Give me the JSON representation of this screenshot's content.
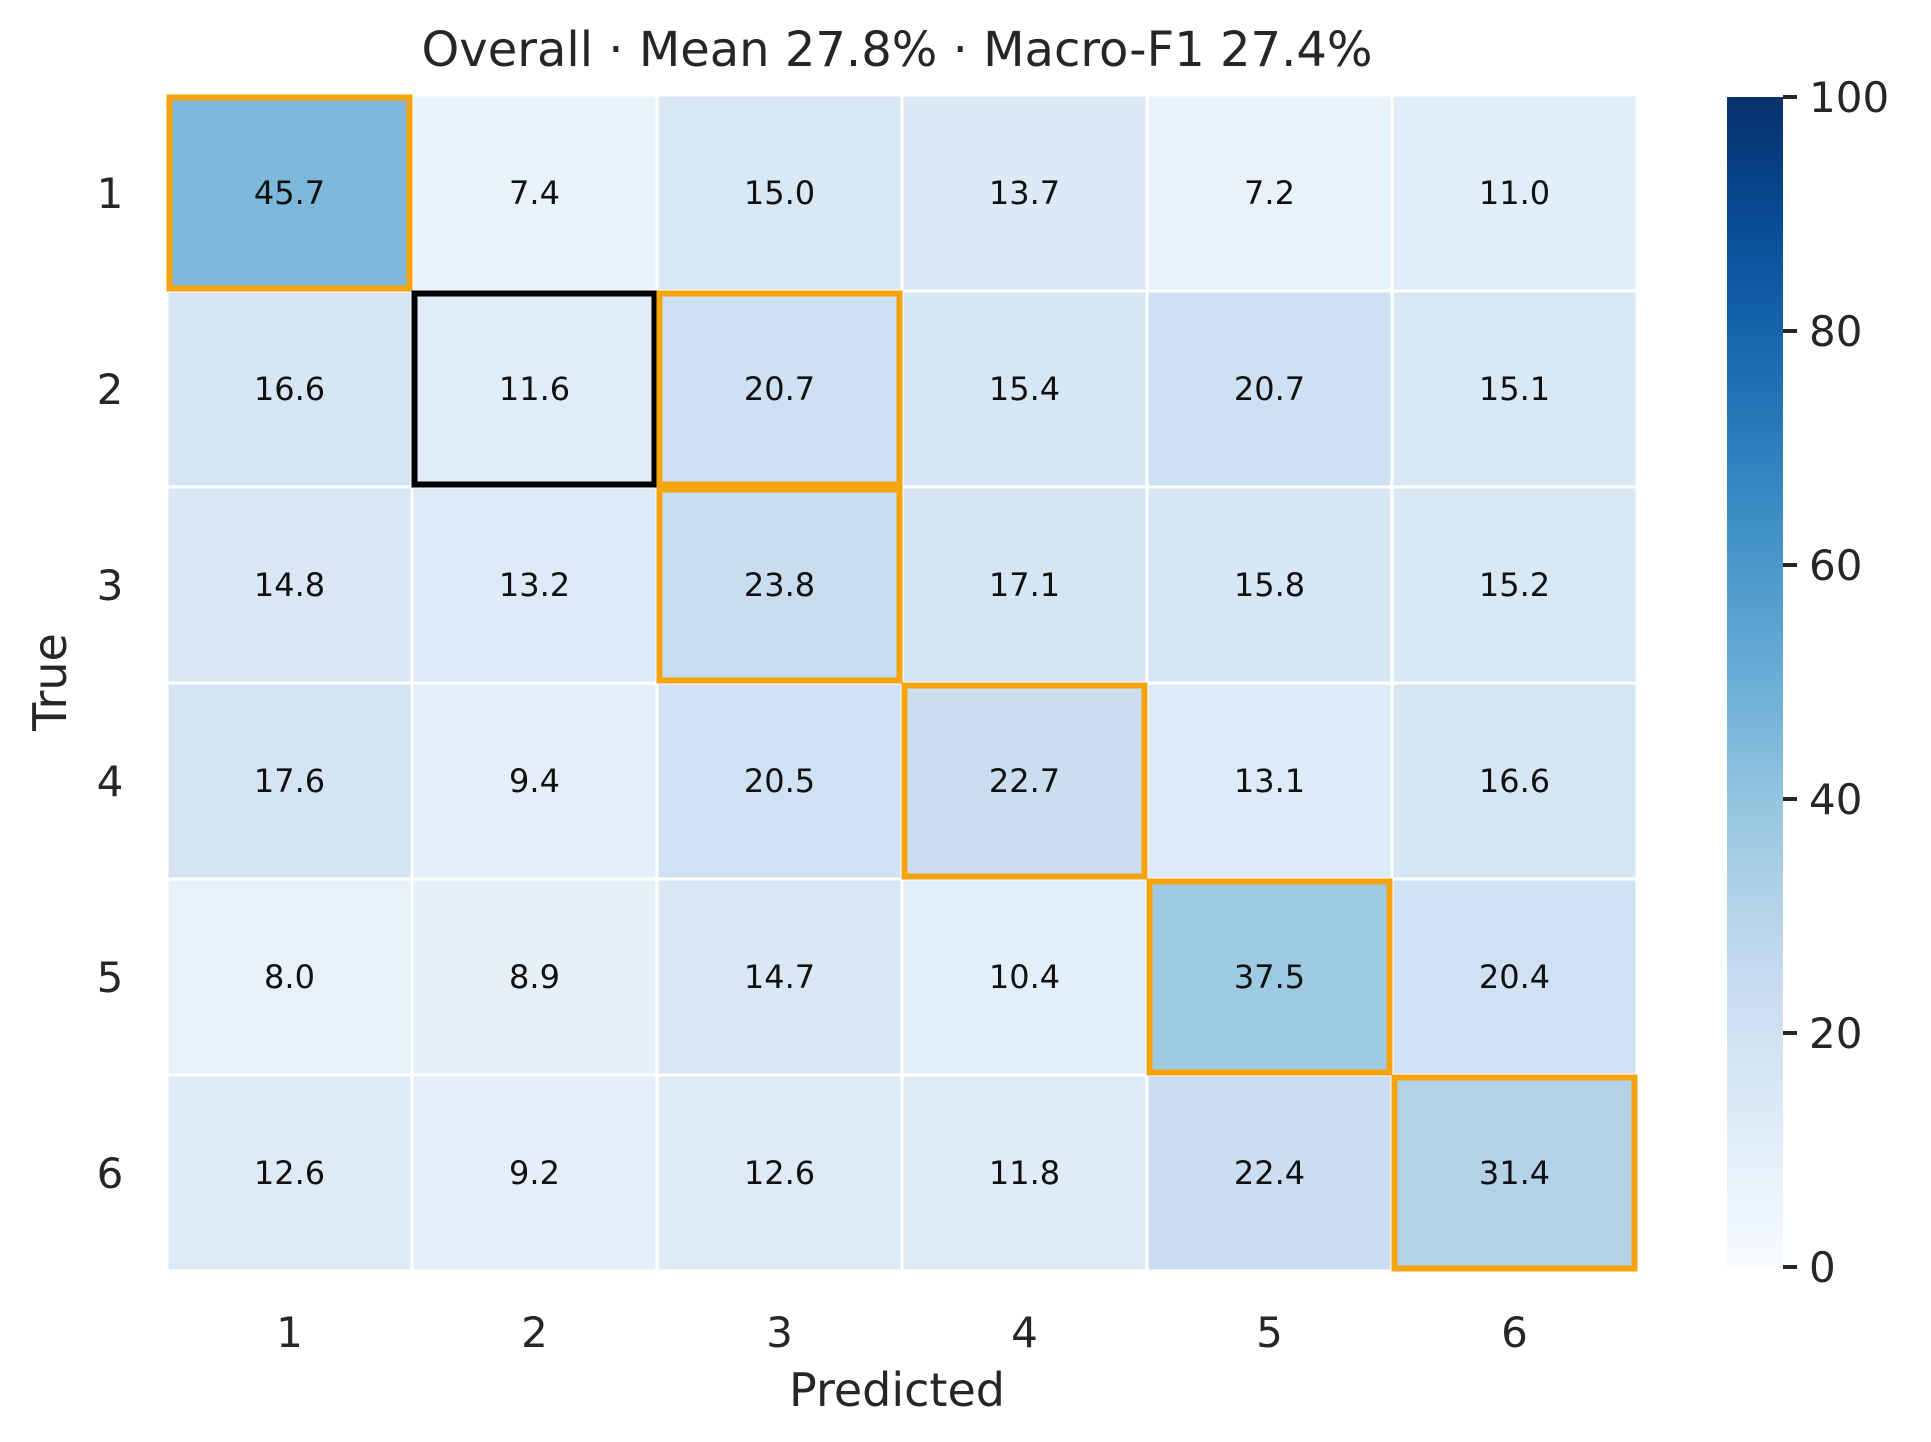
{
  "chart_data": {
    "type": "heatmap",
    "title": "Overall · Mean 27.8% · Macro-F1 27.4%",
    "xlabel": "Predicted",
    "ylabel": "True",
    "x_categories": [
      "1",
      "2",
      "3",
      "4",
      "5",
      "6"
    ],
    "y_categories": [
      "1",
      "2",
      "3",
      "4",
      "5",
      "6"
    ],
    "values": [
      [
        45.7,
        7.4,
        15.0,
        13.7,
        7.2,
        11.0
      ],
      [
        16.6,
        11.6,
        20.7,
        15.4,
        20.7,
        15.1
      ],
      [
        14.8,
        13.2,
        23.8,
        17.1,
        15.8,
        15.2
      ],
      [
        17.6,
        9.4,
        20.5,
        22.7,
        13.1,
        16.6
      ],
      [
        8.0,
        8.9,
        14.7,
        10.4,
        37.5,
        20.4
      ],
      [
        12.6,
        9.2,
        12.6,
        11.8,
        22.4,
        31.4
      ]
    ],
    "value_labels": [
      [
        "45.7",
        "7.4",
        "15.0",
        "13.7",
        "7.2",
        "11.0"
      ],
      [
        "16.6",
        "11.6",
        "20.7",
        "15.4",
        "20.7",
        "15.1"
      ],
      [
        "14.8",
        "13.2",
        "23.8",
        "17.1",
        "15.8",
        "15.2"
      ],
      [
        "17.6",
        "9.4",
        "20.5",
        "22.7",
        "13.1",
        "16.6"
      ],
      [
        "8.0",
        "8.9",
        "14.7",
        "10.4",
        "37.5",
        "20.4"
      ],
      [
        "12.6",
        "9.2",
        "12.6",
        "11.8",
        "22.4",
        "31.4"
      ]
    ],
    "colormap": "Blues",
    "vmin": 0,
    "vmax": 100,
    "colorbar_ticks": [
      "0",
      "20",
      "40",
      "60",
      "80",
      "100"
    ],
    "highlights": [
      {
        "row": 0,
        "col": 0,
        "color": "#f5a30f"
      },
      {
        "row": 1,
        "col": 1,
        "color": "#000000"
      },
      {
        "row": 1,
        "col": 2,
        "color": "#f5a30f"
      },
      {
        "row": 2,
        "col": 2,
        "color": "#f5a30f"
      },
      {
        "row": 3,
        "col": 3,
        "color": "#f5a30f"
      },
      {
        "row": 4,
        "col": 4,
        "color": "#f5a30f"
      },
      {
        "row": 5,
        "col": 5,
        "color": "#f5a30f"
      }
    ]
  }
}
